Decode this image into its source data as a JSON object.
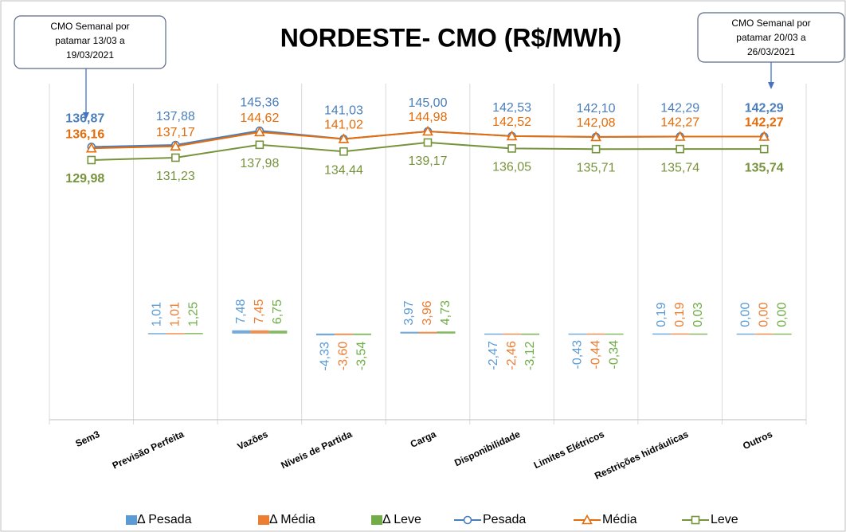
{
  "chart_data": {
    "type": "combo",
    "title": "NORDESTE- CMO (R$/MWh)",
    "annotations": [
      {
        "lines": [
          "CMO Semanal por",
          "patamar 13/03 a",
          "19/03/2021"
        ]
      },
      {
        "lines": [
          "CMO Semanal por",
          "patamar 20/03 a",
          "26/03/2021"
        ]
      }
    ],
    "categories": [
      "Sem3",
      "Previsão Perfeita",
      "Vazões",
      "Níveis de Partida",
      "Carga",
      "Disponibilidade",
      "Limites Elétricos",
      "Restrições hidráulicas",
      "Outros"
    ],
    "ylim": [
      -6,
      170
    ],
    "y2lim": [
      -200,
      580
    ],
    "legend": "bottom",
    "series": [
      {
        "name": "Δ Pesada",
        "type": "bar",
        "axis": "y2",
        "color": "#5b9bd5",
        "values": [
          null,
          1.01,
          7.48,
          -4.33,
          3.97,
          -2.47,
          -0.43,
          0.19,
          0.0
        ],
        "value_labels": [
          null,
          "1,01",
          "7,48",
          "-4,33",
          "3,97",
          "-2,47",
          "-0,43",
          "0,19",
          "0,00"
        ]
      },
      {
        "name": "Δ Média",
        "type": "bar",
        "axis": "y2",
        "color": "#ed7d31",
        "values": [
          null,
          1.01,
          7.45,
          -3.6,
          3.96,
          -2.46,
          -0.44,
          0.19,
          0.0
        ],
        "value_labels": [
          null,
          "1,01",
          "7,45",
          "-3,60",
          "3,96",
          "-2,46",
          "-0,44",
          "0,19",
          "0,00"
        ]
      },
      {
        "name": "Δ Leve",
        "type": "bar",
        "axis": "y2",
        "color": "#70ad47",
        "values": [
          null,
          1.25,
          6.75,
          -3.54,
          4.73,
          -3.12,
          -0.34,
          0.03,
          0.0
        ],
        "value_labels": [
          null,
          "1,25",
          "6,75",
          "-3,54",
          "4,73",
          "-3,12",
          "-0,34",
          "0,03",
          "0,00"
        ]
      },
      {
        "name": "Pesada",
        "type": "line",
        "marker": "circle",
        "color": "#4a7ebb",
        "values": [
          136.87,
          137.88,
          145.36,
          141.03,
          145.0,
          142.53,
          142.1,
          142.29,
          142.29
        ],
        "value_labels": [
          "136,87",
          "137,88",
          "145,36",
          "141,03",
          "145,00",
          "142,53",
          "142,10",
          "142,29",
          "142,29"
        ]
      },
      {
        "name": "Média",
        "type": "line",
        "marker": "triangle",
        "color": "#e46c0a",
        "values": [
          136.16,
          137.17,
          144.62,
          141.02,
          144.98,
          142.52,
          142.08,
          142.27,
          142.27
        ],
        "value_labels": [
          "136,16",
          "137,17",
          "144,62",
          "141,02",
          "144,98",
          "142,52",
          "142,08",
          "142,27",
          "142,27"
        ]
      },
      {
        "name": "Leve",
        "type": "line",
        "marker": "square",
        "color": "#77933c",
        "values": [
          129.98,
          131.23,
          137.98,
          134.44,
          139.17,
          136.05,
          135.71,
          135.74,
          135.74
        ],
        "value_labels": [
          "129,98",
          "131,23",
          "137,98",
          "134,44",
          "139,17",
          "136,05",
          "135,71",
          "135,74",
          "135,74"
        ]
      }
    ]
  }
}
